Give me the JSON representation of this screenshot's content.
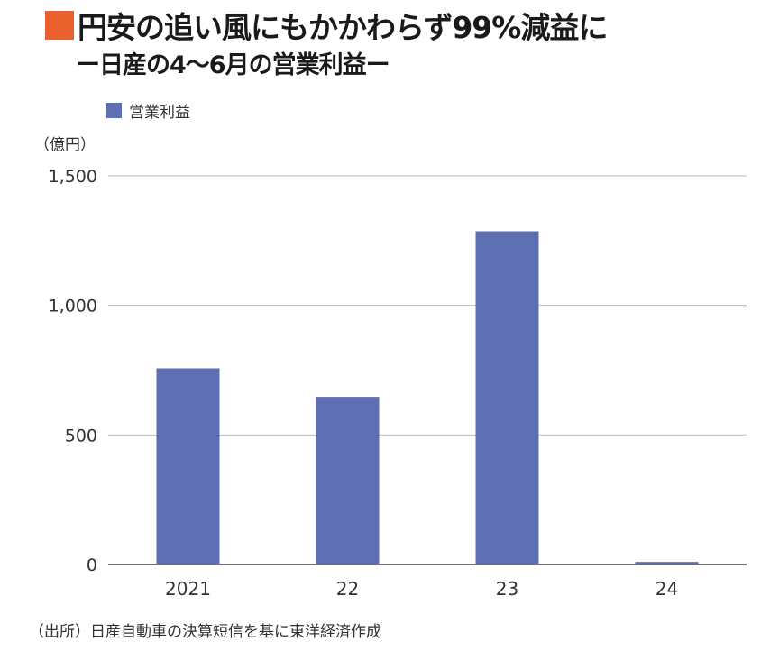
{
  "title": "円安の追い風にもかかわらず99%減益に",
  "subtitle": "ー日産の4〜6月の営業利益ー",
  "unit_label": "（億円）",
  "source_note": "（出所）日産自動車の決算短信を基に東洋経済作成",
  "colors": {
    "title_square": "#E8602C",
    "bar": "#5F6FB4",
    "grid": "#BBBBBB",
    "axis": "#444444"
  },
  "chart_data": {
    "type": "bar",
    "title": "円安の追い風にもかかわらず99%減益に",
    "subtitle": "ー日産の4〜6月の営業利益ー",
    "categories": [
      "2021",
      "22",
      "23",
      "24"
    ],
    "series": [
      {
        "name": "営業利益",
        "values": [
          757,
          647,
          1286,
          10
        ]
      }
    ],
    "ylim": [
      0,
      1500
    ],
    "yticks": [
      {
        "value": 0,
        "label": "0"
      },
      {
        "value": 500,
        "label": "500"
      },
      {
        "value": 1000,
        "label": "1,000"
      },
      {
        "value": 1500,
        "label": "1,500"
      }
    ],
    "ylabel": "（億円）",
    "xlabel": "",
    "grid": true,
    "legend": "top-left"
  }
}
